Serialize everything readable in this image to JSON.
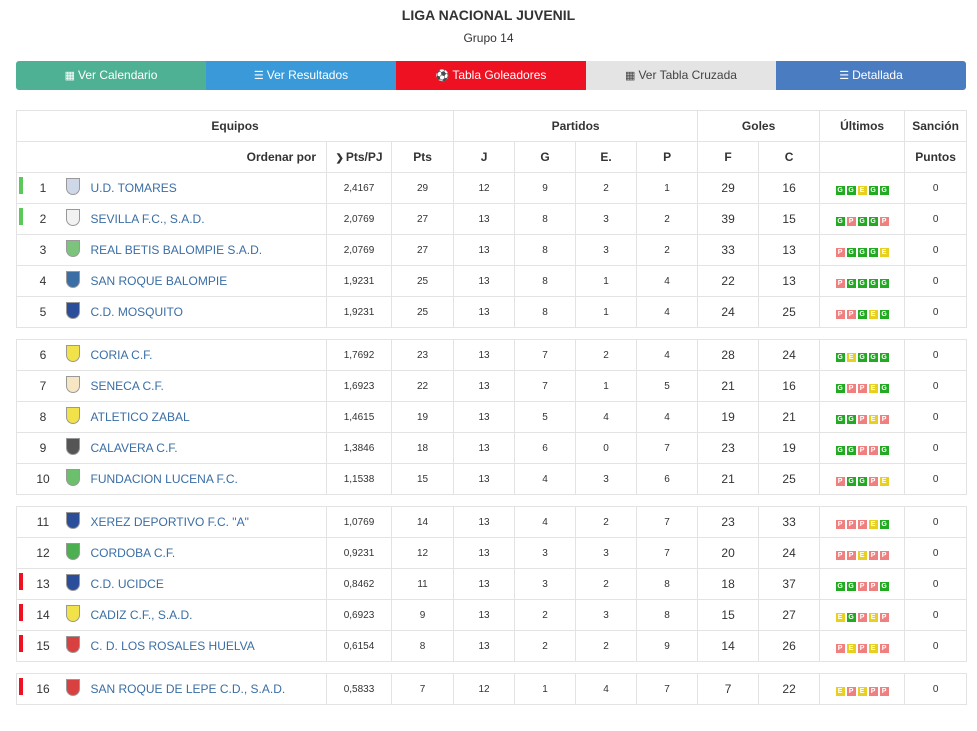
{
  "header": {
    "title": "LIGA NACIONAL JUVENIL",
    "subtitle": "Grupo 14"
  },
  "tabs": [
    {
      "label": "Ver Calendario",
      "icon": "calendar-icon",
      "glyph": "▦"
    },
    {
      "label": "Ver Resultados",
      "icon": "list-icon",
      "glyph": "☰"
    },
    {
      "label": "Tabla Goleadores",
      "icon": "soccer-ball-icon",
      "glyph": "⚽"
    },
    {
      "label": "Ver Tabla Cruzada",
      "icon": "table-icon",
      "glyph": "▦"
    },
    {
      "label": "Detallada",
      "icon": "detail-list-icon",
      "glyph": "☰"
    }
  ],
  "table": {
    "group_headers": {
      "equipos": "Equipos",
      "partidos": "Partidos",
      "goles": "Goles",
      "ultimos": "Últimos",
      "sancion": "Sanción"
    },
    "sub_headers": {
      "ordenar": "Ordenar por",
      "pts_pj": "Pts/PJ",
      "pts": "Pts",
      "j": "J",
      "g": "G",
      "e": "E.",
      "p": "P",
      "f": "F",
      "c": "C",
      "puntos": "Puntos"
    },
    "form_colors": {
      "G": "#22aa22",
      "P": "#f08080",
      "E": "#e8d020"
    },
    "indicator_colors": {
      "up": "#5cc85c",
      "down": "#ee1122"
    },
    "groups": [
      [
        {
          "pos": "1",
          "team": "U.D. TOMARES",
          "crest": "#cfd8e8",
          "ptspj": "2,4167",
          "pts": "29",
          "j": "12",
          "g": "9",
          "e": "2",
          "p": "1",
          "f": "29",
          "c": "16",
          "form": [
            "G",
            "G",
            "E",
            "G",
            "G"
          ],
          "ind": "up",
          "san": "0"
        },
        {
          "pos": "2",
          "team": "SEVILLA F.C., S.A.D.",
          "crest": "#f2f2f2",
          "ptspj": "2,0769",
          "pts": "27",
          "j": "13",
          "g": "8",
          "e": "3",
          "p": "2",
          "f": "39",
          "c": "15",
          "form": [
            "G",
            "P",
            "G",
            "G",
            "P"
          ],
          "ind": "up",
          "san": "0"
        },
        {
          "pos": "3",
          "team": "REAL BETIS BALOMPIE S.A.D.",
          "crest": "#7cc47c",
          "ptspj": "2,0769",
          "pts": "27",
          "j": "13",
          "g": "8",
          "e": "3",
          "p": "2",
          "f": "33",
          "c": "13",
          "form": [
            "P",
            "G",
            "G",
            "G",
            "E"
          ],
          "ind": "",
          "san": "0"
        },
        {
          "pos": "4",
          "team": "SAN ROQUE BALOMPIE",
          "crest": "#3a6ea5",
          "ptspj": "1,9231",
          "pts": "25",
          "j": "13",
          "g": "8",
          "e": "1",
          "p": "4",
          "f": "22",
          "c": "13",
          "form": [
            "P",
            "G",
            "G",
            "G",
            "G"
          ],
          "ind": "",
          "san": "0"
        },
        {
          "pos": "5",
          "team": "C.D. MOSQUITO",
          "crest": "#2a4e9a",
          "ptspj": "1,9231",
          "pts": "25",
          "j": "13",
          "g": "8",
          "e": "1",
          "p": "4",
          "f": "24",
          "c": "25",
          "form": [
            "P",
            "P",
            "G",
            "E",
            "G"
          ],
          "ind": "",
          "san": "0"
        }
      ],
      [
        {
          "pos": "6",
          "team": "CORIA C.F.",
          "crest": "#f2e24a",
          "ptspj": "1,7692",
          "pts": "23",
          "j": "13",
          "g": "7",
          "e": "2",
          "p": "4",
          "f": "28",
          "c": "24",
          "form": [
            "G",
            "E",
            "G",
            "G",
            "G"
          ],
          "ind": "",
          "san": "0"
        },
        {
          "pos": "7",
          "team": "SENECA C.F.",
          "crest": "#f7e6c4",
          "ptspj": "1,6923",
          "pts": "22",
          "j": "13",
          "g": "7",
          "e": "1",
          "p": "5",
          "f": "21",
          "c": "16",
          "form": [
            "G",
            "P",
            "P",
            "E",
            "G"
          ],
          "ind": "",
          "san": "0"
        },
        {
          "pos": "8",
          "team": "ATLETICO ZABAL",
          "crest": "#f2e24a",
          "ptspj": "1,4615",
          "pts": "19",
          "j": "13",
          "g": "5",
          "e": "4",
          "p": "4",
          "f": "19",
          "c": "21",
          "form": [
            "G",
            "G",
            "P",
            "E",
            "P"
          ],
          "ind": "",
          "san": "0"
        },
        {
          "pos": "9",
          "team": "CALAVERA C.F.",
          "crest": "#555555",
          "ptspj": "1,3846",
          "pts": "18",
          "j": "13",
          "g": "6",
          "e": "0",
          "p": "7",
          "f": "23",
          "c": "19",
          "form": [
            "G",
            "G",
            "P",
            "P",
            "G"
          ],
          "ind": "",
          "san": "0"
        },
        {
          "pos": "10",
          "team": "FUNDACION LUCENA F.C.",
          "crest": "#6cbf6c",
          "ptspj": "1,1538",
          "pts": "15",
          "j": "13",
          "g": "4",
          "e": "3",
          "p": "6",
          "f": "21",
          "c": "25",
          "form": [
            "P",
            "G",
            "G",
            "P",
            "E"
          ],
          "ind": "",
          "san": "0"
        }
      ],
      [
        {
          "pos": "11",
          "team": "XEREZ DEPORTIVO F.C. \"A\"",
          "crest": "#2a4e9a",
          "ptspj": "1,0769",
          "pts": "14",
          "j": "13",
          "g": "4",
          "e": "2",
          "p": "7",
          "f": "23",
          "c": "33",
          "form": [
            "P",
            "P",
            "P",
            "E",
            "G"
          ],
          "ind": "",
          "san": "0"
        },
        {
          "pos": "12",
          "team": "CORDOBA C.F.",
          "crest": "#4caf50",
          "ptspj": "0,9231",
          "pts": "12",
          "j": "13",
          "g": "3",
          "e": "3",
          "p": "7",
          "f": "20",
          "c": "24",
          "form": [
            "P",
            "P",
            "E",
            "P",
            "P"
          ],
          "ind": "",
          "san": "0"
        },
        {
          "pos": "13",
          "team": "C.D. UCIDCE",
          "crest": "#2a4e9a",
          "ptspj": "0,8462",
          "pts": "11",
          "j": "13",
          "g": "3",
          "e": "2",
          "p": "8",
          "f": "18",
          "c": "37",
          "form": [
            "G",
            "G",
            "P",
            "P",
            "G"
          ],
          "ind": "down",
          "san": "0"
        },
        {
          "pos": "14",
          "team": "CADIZ C.F., S.A.D.",
          "crest": "#f2e24a",
          "ptspj": "0,6923",
          "pts": "9",
          "j": "13",
          "g": "2",
          "e": "3",
          "p": "8",
          "f": "15",
          "c": "27",
          "form": [
            "E",
            "G",
            "P",
            "E",
            "P"
          ],
          "ind": "down",
          "san": "0"
        },
        {
          "pos": "15",
          "team": "C. D. LOS ROSALES HUELVA",
          "crest": "#d94040",
          "ptspj": "0,6154",
          "pts": "8",
          "j": "13",
          "g": "2",
          "e": "2",
          "p": "9",
          "f": "14",
          "c": "26",
          "form": [
            "P",
            "E",
            "P",
            "E",
            "P"
          ],
          "ind": "down",
          "san": "0"
        }
      ],
      [
        {
          "pos": "16",
          "team": "SAN ROQUE DE LEPE C.D., S.A.D.",
          "crest": "#d94040",
          "ptspj": "0,5833",
          "pts": "7",
          "j": "12",
          "g": "1",
          "e": "4",
          "p": "7",
          "f": "7",
          "c": "22",
          "form": [
            "E",
            "P",
            "E",
            "P",
            "P"
          ],
          "ind": "down",
          "san": "0"
        }
      ]
    ]
  }
}
